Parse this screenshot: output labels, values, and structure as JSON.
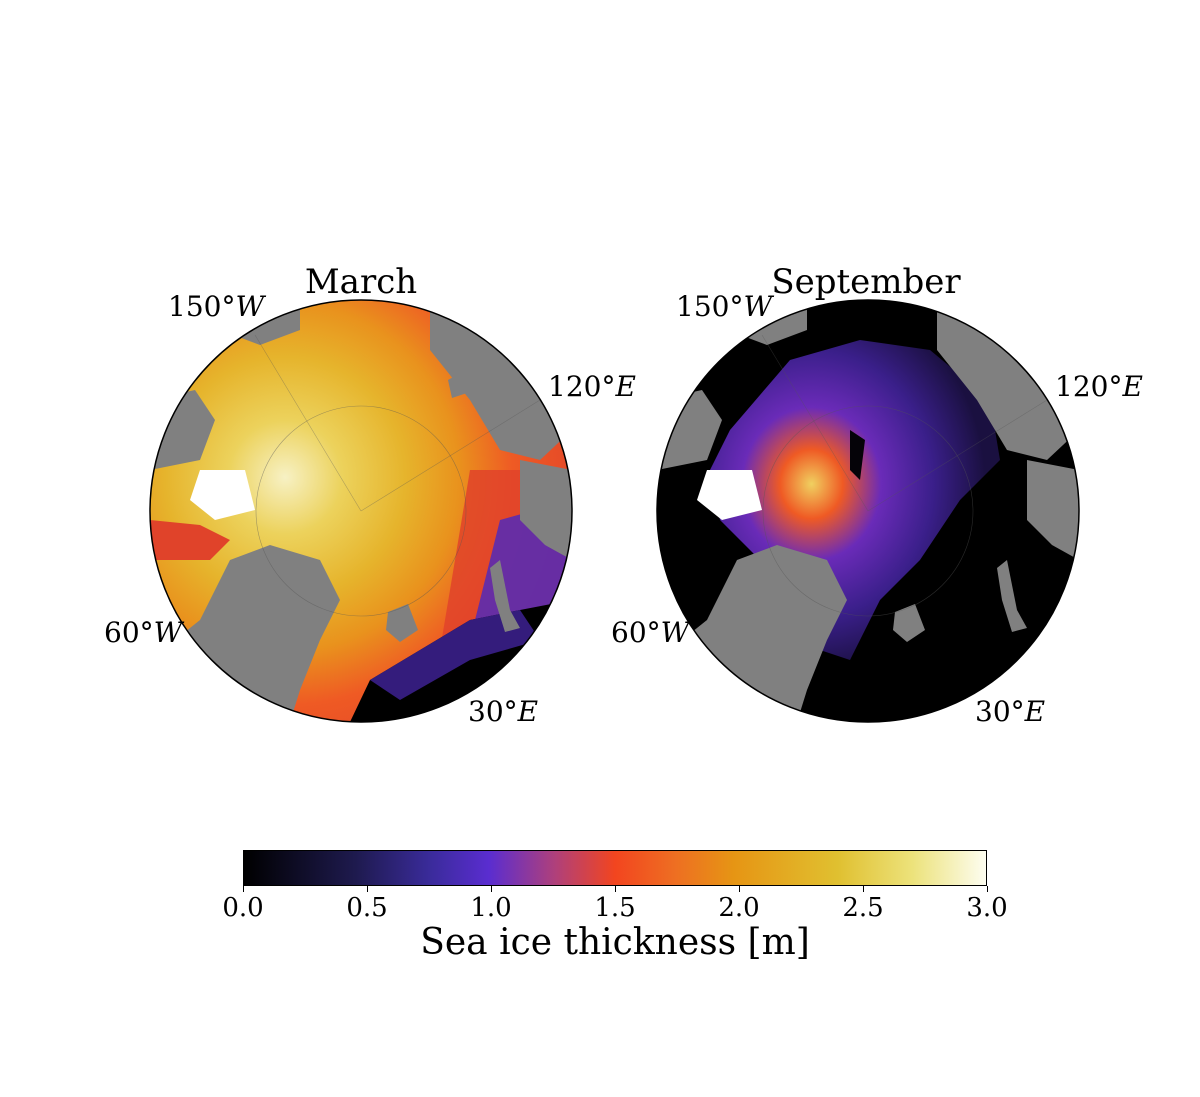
{
  "panels": [
    {
      "title": "March",
      "labels": {
        "lon150w": "150°",
        "lon120e": "120°",
        "lon60w": "60°",
        "lon30e": "30°"
      }
    },
    {
      "title": "September",
      "labels": {
        "lon150w": "150°",
        "lon120e": "120°",
        "lon60w": "60°",
        "lon30e": "30°"
      }
    }
  ],
  "hemisphere_letters": {
    "west": "W",
    "east": "E"
  },
  "colorbar": {
    "label": "Sea ice thickness [m]",
    "min": 0.0,
    "max": 3.0,
    "ticks": [
      "0.0",
      "0.5",
      "1.0",
      "1.5",
      "2.0",
      "2.5",
      "3.0"
    ],
    "colormap": "CMRmap-like (black → indigo → purple → red-orange → gold → cream)"
  },
  "colors": {
    "land": "#808080",
    "ice_free": "#000000",
    "coastline": "#ffffff"
  }
}
